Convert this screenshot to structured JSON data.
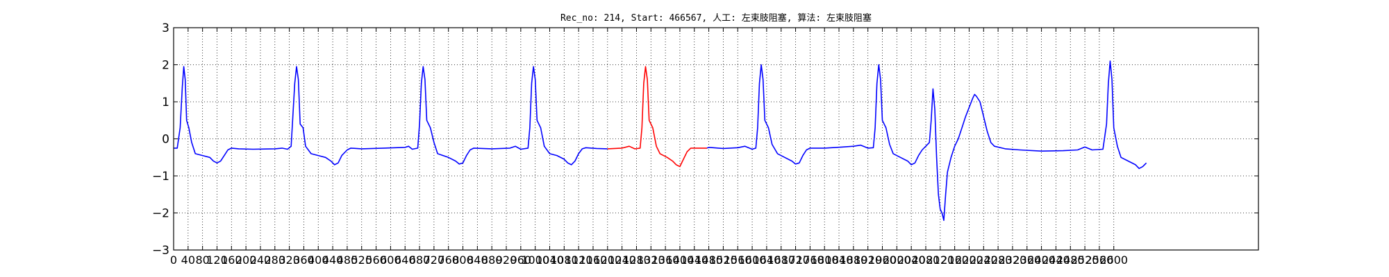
{
  "chart_data": {
    "type": "line",
    "title": "Rec_no: 214, Start: 466567, 人工: 左束肢阻塞, 算法: 左束肢阻塞",
    "xlabel": "",
    "ylabel": "",
    "xlim": [
      0,
      3000
    ],
    "ylim": [
      -3,
      3
    ],
    "grid": true,
    "grid_style": "dotted",
    "yticks": [
      -3,
      -2,
      -1,
      0,
      1,
      2,
      3
    ],
    "ytick_labels": [
      "−3",
      "−2",
      "−1",
      "0",
      "1",
      "2",
      "3"
    ],
    "xticks": [
      0,
      40,
      80,
      120,
      160,
      200,
      240,
      280,
      320,
      360,
      400,
      440,
      480,
      520,
      560,
      600,
      640,
      680,
      720,
      760,
      800,
      840,
      880,
      920,
      960,
      1000,
      1040,
      1080,
      1120,
      1160,
      1200,
      1240,
      1280,
      1320,
      1360,
      1400,
      1440,
      1480,
      1520,
      1560,
      1600,
      1640,
      1680,
      1720,
      1760,
      1800,
      1840,
      1880,
      1920,
      1960,
      2000,
      2040,
      2080,
      2120,
      2160,
      2200,
      2240,
      2280,
      2320,
      2360,
      2400,
      2440,
      2480,
      2520,
      2560,
      2600
    ],
    "series": [
      {
        "color": "#0000ff",
        "segments": [
          [
            [
              0,
              -0.25
            ],
            [
              10,
              -0.25
            ],
            [
              18,
              0.3
            ],
            [
              24,
              1.4
            ],
            [
              28,
              1.95
            ],
            [
              32,
              1.6
            ],
            [
              36,
              0.5
            ],
            [
              42,
              0.3
            ],
            [
              50,
              -0.1
            ],
            [
              60,
              -0.4
            ],
            [
              80,
              -0.45
            ],
            [
              100,
              -0.5
            ],
            [
              110,
              -0.6
            ],
            [
              120,
              -0.65
            ],
            [
              130,
              -0.6
            ],
            [
              140,
              -0.45
            ],
            [
              150,
              -0.3
            ],
            [
              160,
              -0.25
            ],
            [
              180,
              -0.27
            ],
            [
              220,
              -0.28
            ],
            [
              280,
              -0.27
            ],
            [
              300,
              -0.25
            ],
            [
              315,
              -0.28
            ],
            [
              325,
              -0.2
            ],
            [
              335,
              1.5
            ],
            [
              340,
              1.95
            ],
            [
              345,
              1.6
            ],
            [
              350,
              0.4
            ],
            [
              358,
              0.3
            ],
            [
              365,
              -0.2
            ],
            [
              380,
              -0.4
            ],
            [
              400,
              -0.45
            ],
            [
              420,
              -0.5
            ],
            [
              435,
              -0.6
            ],
            [
              445,
              -0.7
            ],
            [
              455,
              -0.65
            ],
            [
              465,
              -0.45
            ],
            [
              480,
              -0.3
            ],
            [
              490,
              -0.25
            ],
            [
              520,
              -0.27
            ],
            [
              580,
              -0.25
            ],
            [
              640,
              -0.23
            ],
            [
              650,
              -0.2
            ],
            [
              660,
              -0.28
            ],
            [
              675,
              -0.25
            ],
            [
              680,
              0.4
            ],
            [
              685,
              1.5
            ],
            [
              690,
              1.95
            ],
            [
              695,
              1.6
            ],
            [
              700,
              0.5
            ],
            [
              710,
              0.3
            ],
            [
              720,
              -0.1
            ],
            [
              730,
              -0.4
            ],
            [
              760,
              -0.5
            ],
            [
              780,
              -0.6
            ],
            [
              790,
              -0.68
            ],
            [
              800,
              -0.65
            ],
            [
              810,
              -0.45
            ],
            [
              820,
              -0.3
            ],
            [
              830,
              -0.25
            ],
            [
              880,
              -0.27
            ],
            [
              930,
              -0.25
            ],
            [
              945,
              -0.2
            ],
            [
              960,
              -0.28
            ],
            [
              980,
              -0.25
            ],
            [
              985,
              0.3
            ],
            [
              990,
              1.5
            ],
            [
              995,
              1.95
            ],
            [
              1000,
              1.6
            ],
            [
              1005,
              0.5
            ],
            [
              1015,
              0.3
            ],
            [
              1025,
              -0.2
            ],
            [
              1040,
              -0.4
            ],
            [
              1060,
              -0.45
            ],
            [
              1080,
              -0.55
            ],
            [
              1090,
              -0.65
            ],
            [
              1100,
              -0.7
            ],
            [
              1110,
              -0.6
            ],
            [
              1120,
              -0.4
            ],
            [
              1130,
              -0.27
            ],
            [
              1140,
              -0.24
            ],
            [
              1170,
              -0.26
            ],
            [
              1200,
              -0.27
            ]
          ],
          [
            [
              1475,
              -0.25
            ],
            [
              1480,
              -0.23
            ],
            [
              1520,
              -0.26
            ],
            [
              1560,
              -0.24
            ],
            [
              1580,
              -0.2
            ],
            [
              1600,
              -0.28
            ],
            [
              1610,
              -0.25
            ],
            [
              1615,
              0.3
            ],
            [
              1620,
              1.5
            ],
            [
              1625,
              2.0
            ],
            [
              1630,
              1.6
            ],
            [
              1635,
              0.5
            ],
            [
              1645,
              0.3
            ],
            [
              1655,
              -0.15
            ],
            [
              1670,
              -0.4
            ],
            [
              1690,
              -0.5
            ],
            [
              1710,
              -0.6
            ],
            [
              1720,
              -0.68
            ],
            [
              1730,
              -0.65
            ],
            [
              1740,
              -0.45
            ],
            [
              1750,
              -0.3
            ],
            [
              1760,
              -0.25
            ],
            [
              1800,
              -0.25
            ],
            [
              1850,
              -0.22
            ],
            [
              1880,
              -0.2
            ],
            [
              1900,
              -0.17
            ],
            [
              1920,
              -0.25
            ],
            [
              1935,
              -0.24
            ],
            [
              1940,
              0.3
            ],
            [
              1945,
              1.5
            ],
            [
              1950,
              2.0
            ],
            [
              1955,
              1.6
            ],
            [
              1960,
              0.5
            ],
            [
              1970,
              0.3
            ],
            [
              1980,
              -0.15
            ],
            [
              1990,
              -0.4
            ],
            [
              2010,
              -0.5
            ],
            [
              2030,
              -0.6
            ],
            [
              2040,
              -0.7
            ],
            [
              2050,
              -0.65
            ],
            [
              2060,
              -0.45
            ],
            [
              2070,
              -0.3
            ],
            [
              2080,
              -0.2
            ],
            [
              2090,
              -0.1
            ],
            [
              2095,
              0.5
            ],
            [
              2100,
              1.35
            ],
            [
              2105,
              0.8
            ],
            [
              2110,
              -0.5
            ],
            [
              2115,
              -1.5
            ],
            [
              2120,
              -1.9
            ],
            [
              2125,
              -2.0
            ],
            [
              2130,
              -2.2
            ],
            [
              2135,
              -1.5
            ],
            [
              2140,
              -0.9
            ],
            [
              2150,
              -0.5
            ],
            [
              2160,
              -0.2
            ],
            [
              2170,
              0.0
            ],
            [
              2180,
              0.3
            ],
            [
              2190,
              0.6
            ],
            [
              2200,
              0.85
            ],
            [
              2210,
              1.1
            ],
            [
              2215,
              1.2
            ],
            [
              2220,
              1.15
            ],
            [
              2230,
              1.0
            ],
            [
              2240,
              0.6
            ],
            [
              2250,
              0.2
            ],
            [
              2260,
              -0.1
            ],
            [
              2270,
              -0.2
            ],
            [
              2300,
              -0.27
            ],
            [
              2340,
              -0.3
            ],
            [
              2400,
              -0.33
            ],
            [
              2460,
              -0.32
            ],
            [
              2500,
              -0.3
            ],
            [
              2520,
              -0.22
            ],
            [
              2540,
              -0.3
            ],
            [
              2570,
              -0.28
            ],
            [
              2580,
              0.4
            ],
            [
              2585,
              1.5
            ],
            [
              2590,
              2.1
            ],
            [
              2595,
              1.6
            ],
            [
              2600,
              0.3
            ],
            [
              2610,
              -0.2
            ],
            [
              2620,
              -0.5
            ],
            [
              2640,
              -0.6
            ],
            [
              2660,
              -0.7
            ],
            [
              2670,
              -0.8
            ],
            [
              2680,
              -0.75
            ],
            [
              2690,
              -0.65
            ]
          ]
        ]
      },
      {
        "color": "#ff0000",
        "segments": [
          [
            [
              1200,
              -0.27
            ],
            [
              1240,
              -0.25
            ],
            [
              1260,
              -0.2
            ],
            [
              1275,
              -0.27
            ],
            [
              1290,
              -0.25
            ],
            [
              1295,
              0.3
            ],
            [
              1300,
              1.5
            ],
            [
              1305,
              1.95
            ],
            [
              1310,
              1.6
            ],
            [
              1315,
              0.5
            ],
            [
              1325,
              0.3
            ],
            [
              1335,
              -0.2
            ],
            [
              1345,
              -0.4
            ],
            [
              1365,
              -0.5
            ],
            [
              1380,
              -0.6
            ],
            [
              1390,
              -0.7
            ],
            [
              1400,
              -0.75
            ],
            [
              1410,
              -0.55
            ],
            [
              1420,
              -0.35
            ],
            [
              1430,
              -0.25
            ],
            [
              1450,
              -0.25
            ],
            [
              1475,
              -0.25
            ]
          ]
        ]
      }
    ]
  }
}
